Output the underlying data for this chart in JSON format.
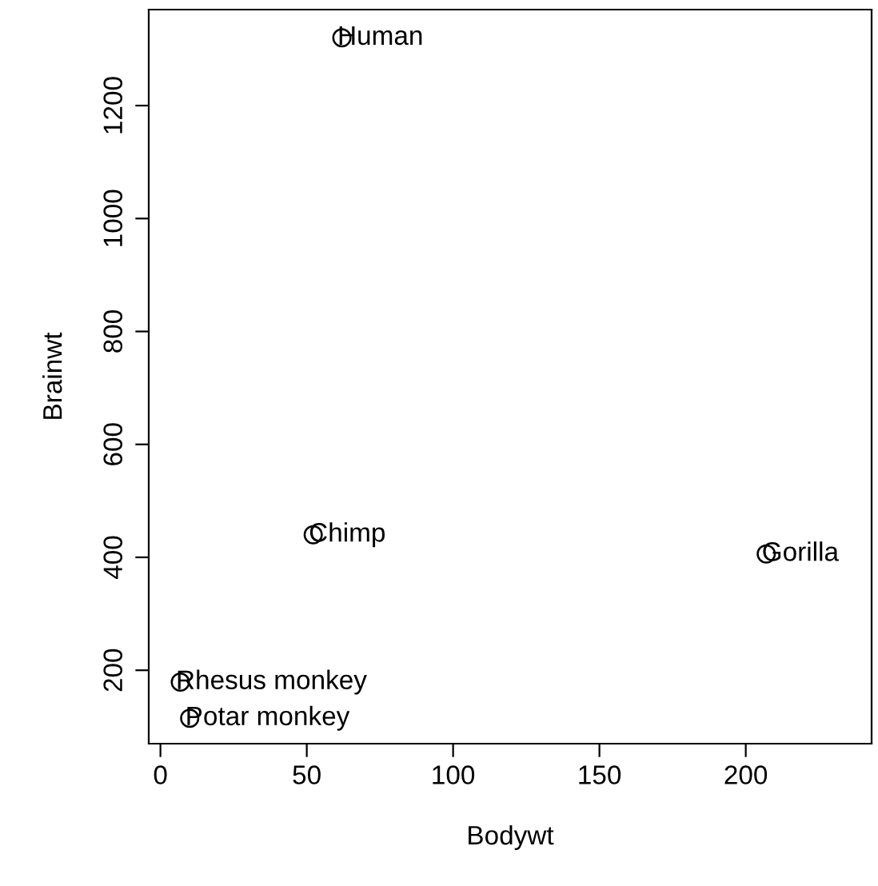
{
  "chart_data": {
    "type": "scatter",
    "xlabel": "Bodywt",
    "ylabel": "Brainwt",
    "marker": "circle",
    "grid": false,
    "series": [
      {
        "color": "#000000",
        "x": [
          10,
          207,
          62,
          6.8,
          52.2
        ],
        "values": [
          115,
          406,
          1320,
          179,
          440
        ]
      }
    ],
    "annotations": [
      {
        "text": "Potar monkey",
        "x": 10,
        "y": 115
      },
      {
        "text": "Gorilla",
        "x": 207,
        "y": 406
      },
      {
        "text": "Human",
        "x": 62,
        "y": 1320
      },
      {
        "text": "Rhesus monkey",
        "x": 6.8,
        "y": 179
      },
      {
        "text": "Chimp",
        "x": 52.2,
        "y": 440
      }
    ],
    "xlim": [
      -4,
      243
    ],
    "ylim": [
      70,
      1370
    ],
    "xticks": [
      0,
      50,
      100,
      150,
      200
    ],
    "yticks": [
      200,
      400,
      600,
      800,
      1000,
      1200
    ]
  }
}
